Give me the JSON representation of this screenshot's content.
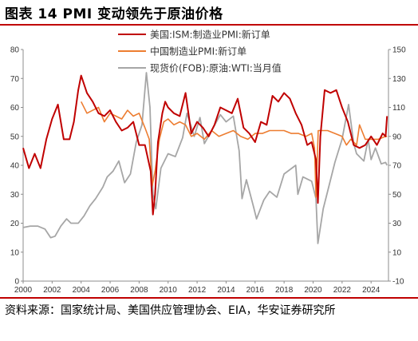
{
  "header": {
    "title": "图表  14  PMI 变动领先于原油价格"
  },
  "footer": {
    "source": "资料来源：国家统计局、美国供应管理协会、EIA，华安证券研究所"
  },
  "colors": {
    "ism": "#c00000",
    "china": "#ed7d31",
    "wti": "#a6a6a6",
    "accent_line": "#c00000"
  },
  "chart_data": {
    "type": "line",
    "title": "",
    "x_ticks": [
      "2000",
      "2002",
      "2004",
      "2006",
      "2008",
      "2010",
      "2012",
      "2014",
      "2016",
      "2018",
      "2020",
      "2022",
      "2024"
    ],
    "xlim": [
      2000,
      2025.2
    ],
    "left_axis": {
      "label": "",
      "ylim": [
        0,
        80
      ],
      "ticks": [
        "0",
        "10",
        "20",
        "30",
        "40",
        "50",
        "60",
        "70",
        "80"
      ]
    },
    "right_axis": {
      "label": "",
      "ylim": [
        -10,
        150
      ],
      "ticks": [
        "-10",
        "10",
        "30",
        "50",
        "70",
        "90",
        "110",
        "130",
        "150"
      ]
    },
    "legend_position": "top-center",
    "series": [
      {
        "name": "美国:ISM:制造业PMI:新订单",
        "axis": "left",
        "color": "#c00000",
        "x": [
          2000,
          2000.4,
          2000.8,
          2001.2,
          2001.6,
          2002,
          2002.4,
          2002.8,
          2003.2,
          2003.5,
          2003.8,
          2004,
          2004.4,
          2004.8,
          2005.2,
          2005.6,
          2006,
          2006.4,
          2006.8,
          2007.2,
          2007.6,
          2008,
          2008.4,
          2008.8,
          2008.95,
          2009.1,
          2009.3,
          2009.6,
          2009.8,
          2010,
          2010.4,
          2010.8,
          2011.2,
          2011.6,
          2012,
          2012.4,
          2012.8,
          2013.2,
          2013.6,
          2014,
          2014.4,
          2014.8,
          2015.2,
          2015.6,
          2016,
          2016.4,
          2016.8,
          2017.2,
          2017.6,
          2018,
          2018.4,
          2018.8,
          2019.2,
          2019.6,
          2019.9,
          2020.2,
          2020.33,
          2020.5,
          2020.8,
          2021.2,
          2021.6,
          2022,
          2022.4,
          2022.8,
          2023.2,
          2023.6,
          2024,
          2024.4,
          2024.8,
          2025,
          2025.1
        ],
        "values": [
          46,
          39,
          44,
          39,
          49,
          56,
          61,
          49,
          49,
          55,
          66,
          71,
          65,
          62,
          58,
          57,
          59,
          55,
          52,
          53,
          55,
          47,
          47,
          38,
          23,
          30,
          48,
          58,
          62,
          60,
          58,
          57,
          65,
          51,
          55,
          53,
          50,
          54,
          60,
          59,
          58,
          63,
          53,
          51,
          48,
          55,
          54,
          64,
          62,
          65,
          63,
          58,
          54,
          47,
          48,
          42,
          27,
          50,
          66,
          65,
          66,
          60,
          55,
          47,
          46,
          47,
          50,
          47,
          51,
          50,
          57
        ]
      },
      {
        "name": "中国制造业PMI:新订单",
        "axis": "left",
        "color": "#ed7d31",
        "x": [
          2004,
          2004.4,
          2004.8,
          2005.2,
          2005.6,
          2006,
          2006.4,
          2006.8,
          2007.2,
          2007.6,
          2008,
          2008.4,
          2008.7,
          2008.9,
          2009.1,
          2009.4,
          2009.7,
          2010,
          2010.4,
          2010.8,
          2011.2,
          2011.6,
          2012,
          2012.5,
          2013,
          2013.5,
          2014,
          2014.5,
          2015,
          2015.5,
          2016,
          2016.5,
          2017,
          2017.5,
          2018,
          2018.5,
          2019,
          2019.5,
          2019.9,
          2020.1,
          2020.2,
          2020.35,
          2020.6,
          2021,
          2021.5,
          2022,
          2022.3,
          2022.6,
          2023,
          2023.2,
          2023.6,
          2024,
          2024.5,
          2025,
          2025.1
        ],
        "values": [
          62,
          58,
          59,
          60,
          55,
          58,
          57,
          56,
          59,
          57,
          58,
          53,
          49,
          33,
          38,
          49,
          55,
          56,
          54,
          55,
          54,
          50,
          51,
          49,
          52,
          50,
          51,
          52,
          50,
          49,
          51,
          51,
          52,
          52,
          52,
          51,
          51,
          50,
          51,
          46,
          29,
          52,
          52,
          52,
          51,
          50,
          47,
          49,
          47,
          54,
          49,
          49,
          49,
          50,
          50
        ]
      },
      {
        "name": "现货价(FOB):原油:WTI:当月值",
        "axis": "right",
        "color": "#a6a6a6",
        "x": [
          2000,
          2000.5,
          2001,
          2001.5,
          2001.9,
          2002.2,
          2002.6,
          2003,
          2003.3,
          2003.8,
          2004.2,
          2004.6,
          2005,
          2005.5,
          2005.8,
          2006.2,
          2006.6,
          2007,
          2007.4,
          2007.8,
          2008.2,
          2008.5,
          2008.75,
          2008.95,
          2009.15,
          2009.5,
          2010,
          2010.5,
          2011,
          2011.3,
          2011.8,
          2012.2,
          2012.5,
          2013,
          2013.6,
          2014,
          2014.5,
          2014.9,
          2015.1,
          2015.4,
          2015.9,
          2016.1,
          2016.6,
          2017,
          2017.5,
          2018,
          2018.8,
          2018.95,
          2019.3,
          2019.9,
          2020.2,
          2020.33,
          2020.7,
          2021,
          2021.5,
          2022,
          2022.45,
          2022.8,
          2023,
          2023.5,
          2023.8,
          2024,
          2024.3,
          2024.7,
          2025,
          2025.1
        ],
        "values": [
          27,
          28,
          28,
          26,
          20,
          21,
          28,
          33,
          30,
          30,
          35,
          42,
          47,
          55,
          62,
          66,
          73,
          58,
          64,
          86,
          98,
          134,
          110,
          50,
          40,
          68,
          78,
          76,
          89,
          106,
          90,
          103,
          85,
          94,
          105,
          100,
          104,
          80,
          47,
          60,
          41,
          33,
          46,
          52,
          48,
          64,
          70,
          50,
          62,
          59,
          47,
          16,
          40,
          52,
          72,
          88,
          112,
          85,
          78,
          73,
          88,
          74,
          82,
          71,
          72,
          70
        ]
      }
    ]
  }
}
